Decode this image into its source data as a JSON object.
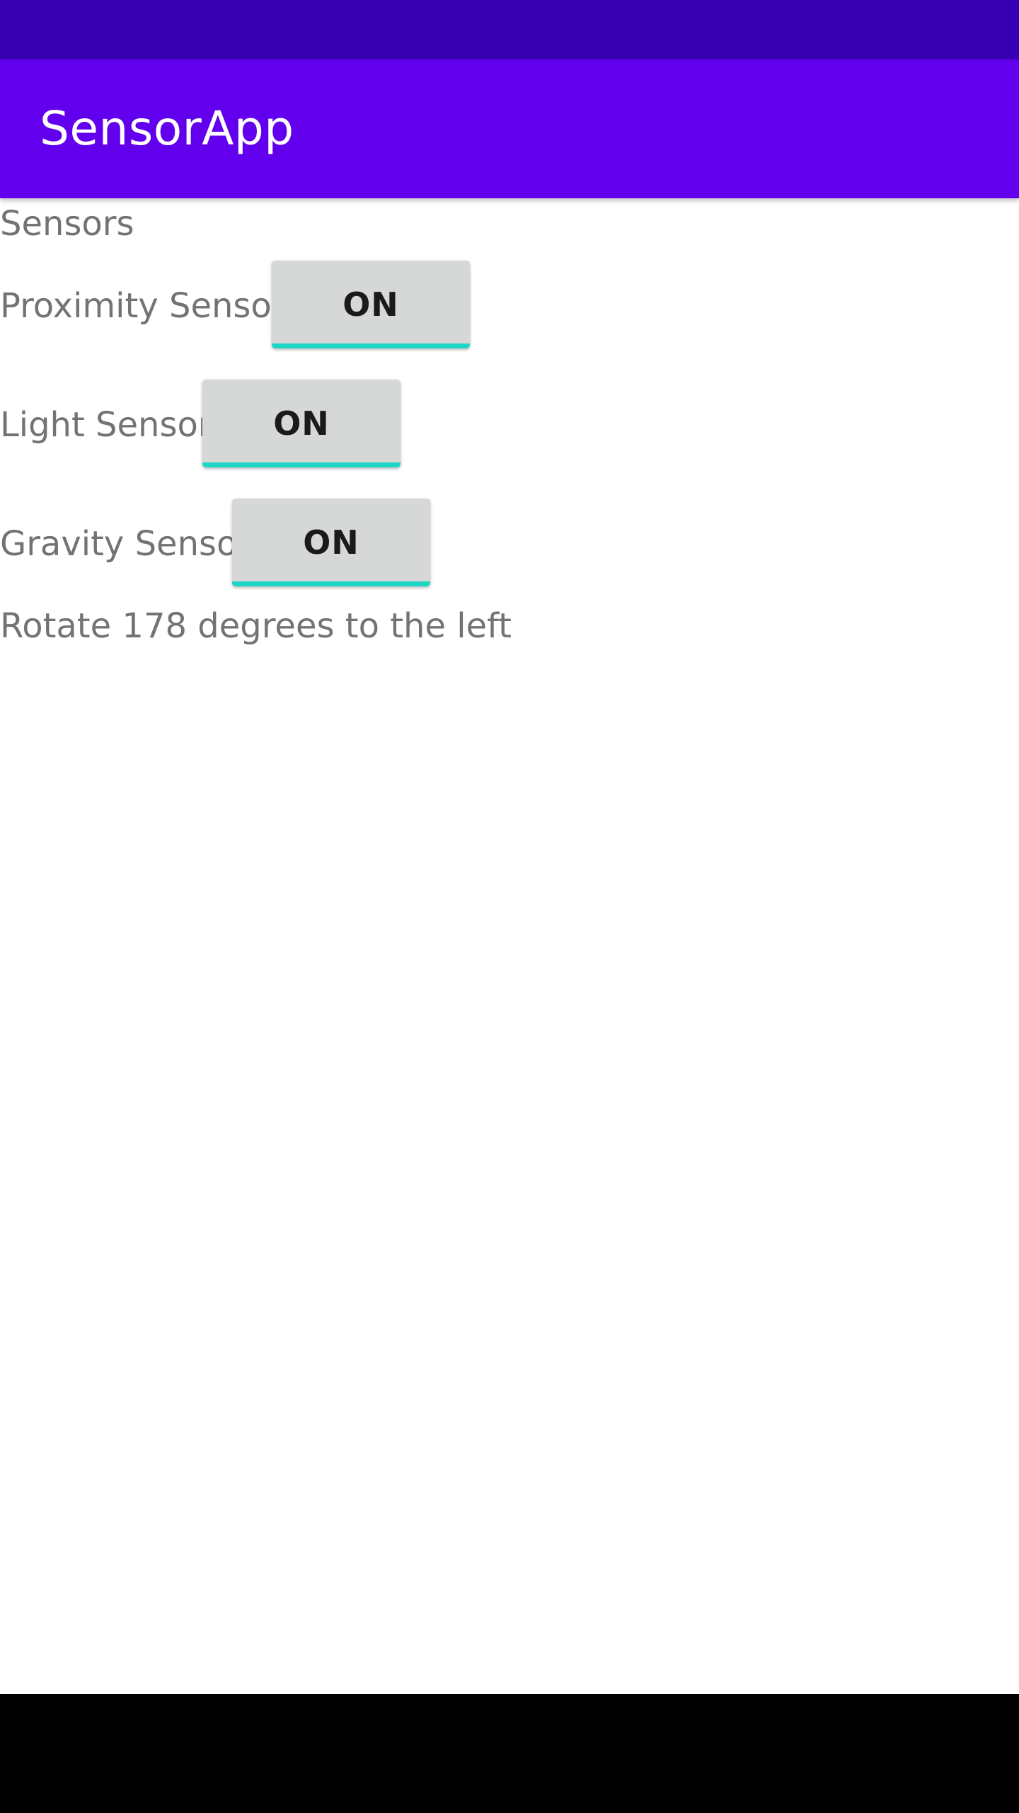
{
  "app": {
    "title": "SensorApp",
    "primary_color": "#6200ee",
    "primary_dark_color": "#3700b3",
    "accent_color": "#1ed6c4"
  },
  "main": {
    "heading": "Sensors",
    "sensors": [
      {
        "label": "Proximity Sensor",
        "button_label": "ON"
      },
      {
        "label": "Light Sensor",
        "button_label": "ON"
      },
      {
        "label": "Gravity Sensor",
        "button_label": "ON"
      }
    ],
    "status_text": "Rotate 178 degrees to the left"
  }
}
